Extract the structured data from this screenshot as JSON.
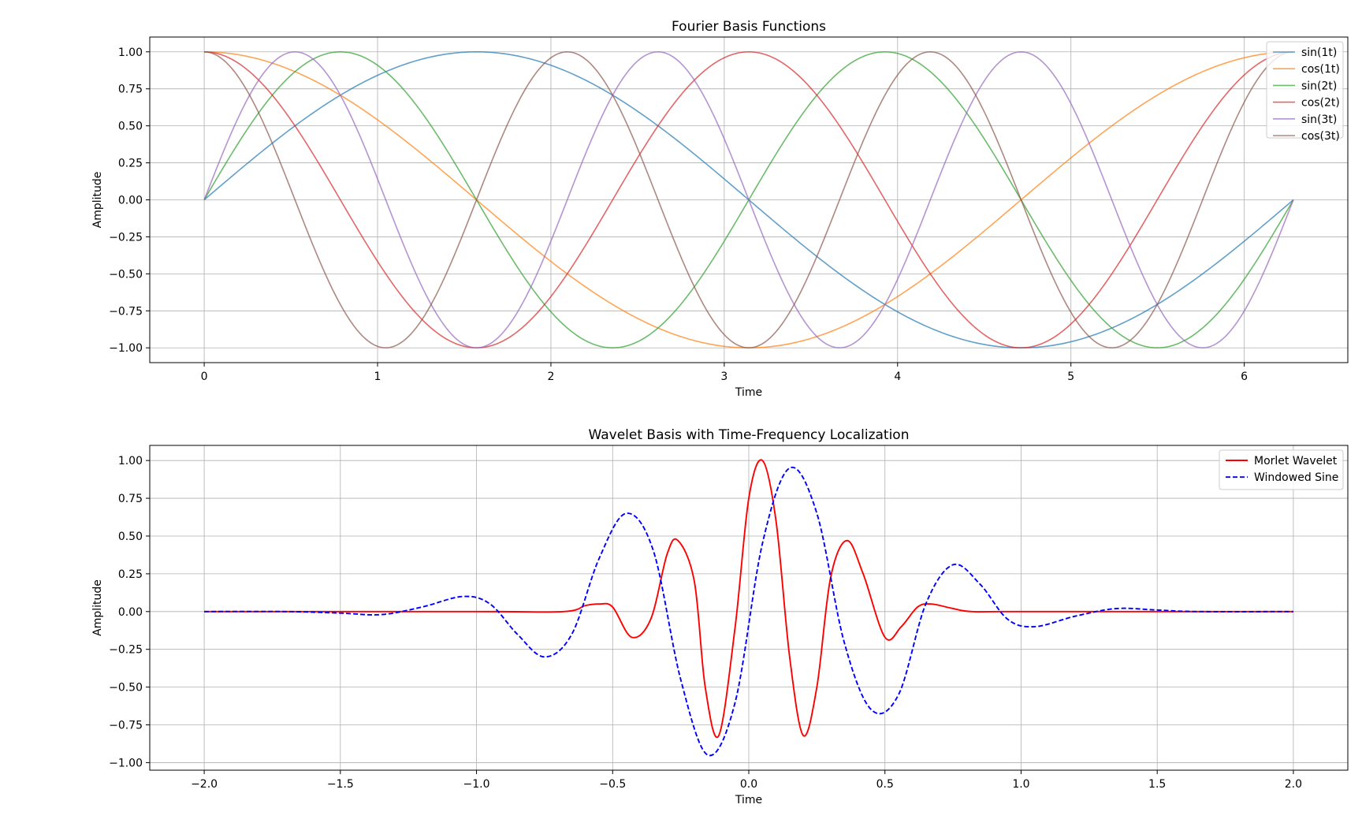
{
  "chart_data": [
    {
      "type": "line",
      "title": "Fourier Basis Functions",
      "xlabel": "Time",
      "ylabel": "Amplitude",
      "xlim": [
        -0.31416,
        6.59734
      ],
      "ylim": [
        -1.1,
        1.1
      ],
      "xticks": [
        0,
        1,
        2,
        3,
        4,
        5,
        6
      ],
      "xticklabels": [
        "0",
        "1",
        "2",
        "3",
        "4",
        "5",
        "6"
      ],
      "yticks": [
        1.0,
        0.75,
        0.5,
        0.25,
        0.0,
        -0.25,
        -0.5,
        -0.75,
        -1.0
      ],
      "yticklabels": [
        "1.00",
        "0.75",
        "0.50",
        "0.25",
        "0.00",
        "−0.25",
        "−0.50",
        "−0.75",
        "−1.00"
      ],
      "grid": true,
      "legend_position": "top-right",
      "x_domain": [
        0,
        6.283185
      ],
      "series": [
        {
          "name": "sin(1t)",
          "function": "sin",
          "frequency": 1,
          "color": "#1f77b4",
          "linestyle": "solid",
          "opacity": 0.7
        },
        {
          "name": "cos(1t)",
          "function": "cos",
          "frequency": 1,
          "color": "#ff7f0e",
          "linestyle": "solid",
          "opacity": 0.7
        },
        {
          "name": "sin(2t)",
          "function": "sin",
          "frequency": 2,
          "color": "#2ca02c",
          "linestyle": "solid",
          "opacity": 0.7
        },
        {
          "name": "cos(2t)",
          "function": "cos",
          "frequency": 2,
          "color": "#d62728",
          "linestyle": "solid",
          "opacity": 0.7
        },
        {
          "name": "sin(3t)",
          "function": "sin",
          "frequency": 3,
          "color": "#9467bd",
          "linestyle": "solid",
          "opacity": 0.7
        },
        {
          "name": "cos(3t)",
          "function": "cos",
          "frequency": 3,
          "color": "#8c564b",
          "linestyle": "solid",
          "opacity": 0.7
        }
      ]
    },
    {
      "type": "line",
      "title": "Wavelet Basis with Time-Frequency Localization",
      "xlabel": "Time",
      "ylabel": "Amplitude",
      "xlim": [
        -2.2,
        2.2
      ],
      "ylim": [
        -1.05,
        1.1
      ],
      "xticks": [
        -2.0,
        -1.5,
        -1.0,
        -0.5,
        0.0,
        0.5,
        1.0,
        1.5,
        2.0
      ],
      "xticklabels": [
        "−2.0",
        "−1.5",
        "−1.0",
        "−0.5",
        "0.0",
        "0.5",
        "1.0",
        "1.5",
        "2.0"
      ],
      "yticks": [
        1.0,
        0.75,
        0.5,
        0.25,
        0.0,
        -0.25,
        -0.5,
        -0.75,
        -1.0
      ],
      "yticklabels": [
        "1.00",
        "0.75",
        "0.50",
        "0.25",
        "0.00",
        "−0.25",
        "−0.50",
        "−0.75",
        "−1.00"
      ],
      "grid": true,
      "legend_position": "top-right",
      "x_domain": [
        -2.0,
        2.0
      ],
      "series": [
        {
          "name": "Morlet Wavelet",
          "color": "#ff0000",
          "linestyle": "solid",
          "x": [
            -2.0,
            -1.0,
            -0.68,
            -0.6,
            -0.55,
            -0.5,
            -0.43,
            -0.36,
            -0.3,
            -0.26,
            -0.2,
            -0.16,
            -0.11,
            -0.05,
            0.0,
            0.05,
            0.1,
            0.15,
            0.2,
            0.25,
            0.3,
            0.36,
            0.42,
            0.5,
            0.56,
            0.62,
            0.67,
            0.75,
            0.82,
            1.0,
            2.0
          ],
          "values": [
            0.0,
            0.0,
            0.0,
            0.04,
            0.05,
            0.03,
            -0.17,
            -0.05,
            0.38,
            0.47,
            0.2,
            -0.5,
            -0.82,
            -0.1,
            0.75,
            1.0,
            0.6,
            -0.3,
            -0.82,
            -0.5,
            0.22,
            0.47,
            0.25,
            -0.17,
            -0.1,
            0.03,
            0.05,
            0.02,
            0.0,
            0.0,
            0.0
          ]
        },
        {
          "name": "Windowed Sine",
          "color": "#0000ff",
          "linestyle": "dashed",
          "x": [
            -2.0,
            -1.7,
            -1.5,
            -1.35,
            -1.2,
            -1.05,
            -0.95,
            -0.85,
            -0.75,
            -0.65,
            -0.55,
            -0.45,
            -0.35,
            -0.25,
            -0.15,
            -0.05,
            0.05,
            0.15,
            0.25,
            0.35,
            0.45,
            0.55,
            0.65,
            0.75,
            0.85,
            0.95,
            1.05,
            1.2,
            1.35,
            1.5,
            1.65,
            2.0
          ],
          "values": [
            0.0,
            0.0,
            -0.01,
            -0.02,
            0.03,
            0.1,
            0.05,
            -0.15,
            -0.3,
            -0.15,
            0.35,
            0.65,
            0.4,
            -0.45,
            -0.95,
            -0.6,
            0.45,
            0.95,
            0.65,
            -0.2,
            -0.65,
            -0.55,
            0.05,
            0.31,
            0.18,
            -0.05,
            -0.1,
            -0.03,
            0.02,
            0.01,
            0.0,
            0.0
          ]
        }
      ]
    }
  ]
}
